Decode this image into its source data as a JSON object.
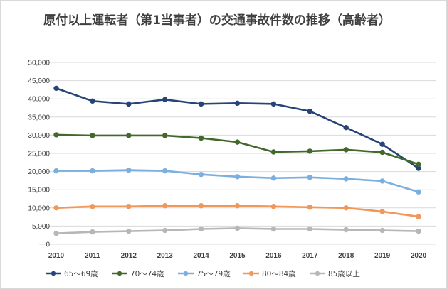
{
  "chart_data": {
    "type": "line",
    "title": "原付以上運転者（第1当事者）の交通事故件数の推移（高齢者）",
    "xlabel": "",
    "ylabel": "",
    "ylim": [
      0,
      50000
    ],
    "ytick_step": 5000,
    "y_tick_labels": [
      "0",
      "5,000",
      "10,000",
      "15,000",
      "20,000",
      "25,000",
      "30,000",
      "35,000",
      "40,000",
      "45,000",
      "50,000"
    ],
    "grid": true,
    "legend_position": "bottom",
    "x": [
      "2010",
      "2011",
      "2012",
      "2013",
      "2014",
      "2015",
      "2016",
      "2017",
      "2018",
      "2019",
      "2020"
    ],
    "series": [
      {
        "name": "65～69歳",
        "color": "#264478",
        "values": [
          42900,
          39400,
          38600,
          39800,
          38600,
          38800,
          38600,
          36600,
          32100,
          27500,
          20900
        ]
      },
      {
        "name": "70～74歳",
        "color": "#43682b",
        "values": [
          30100,
          29900,
          29900,
          29900,
          29200,
          28100,
          25400,
          25600,
          26000,
          25300,
          22000
        ]
      },
      {
        "name": "75～79歳",
        "color": "#7cafdd",
        "values": [
          20200,
          20200,
          20400,
          20200,
          19200,
          18600,
          18200,
          18400,
          18000,
          17400,
          14400
        ]
      },
      {
        "name": "80～84歳",
        "color": "#f1975a",
        "values": [
          10000,
          10400,
          10400,
          10600,
          10600,
          10600,
          10400,
          10200,
          10000,
          9000,
          7600
        ]
      },
      {
        "name": "85歳以上",
        "color": "#b7b7b7",
        "values": [
          3000,
          3400,
          3600,
          3800,
          4200,
          4400,
          4200,
          4200,
          4000,
          3800,
          3600
        ]
      }
    ]
  }
}
